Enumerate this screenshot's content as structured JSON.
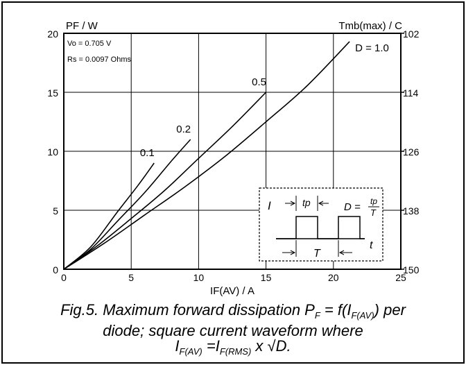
{
  "chart_data": {
    "type": "line",
    "ylabel_left": "PF / W",
    "ylabel_right": "Tmb(max) / C",
    "xlabel": "IF(AV) / A",
    "xlim": [
      0,
      25
    ],
    "ylim": [
      0,
      20
    ],
    "x_ticks": [
      "0",
      "5",
      "10",
      "15",
      "20",
      "25"
    ],
    "y_ticks": [
      "0",
      "5",
      "10",
      "15",
      "20"
    ],
    "right_ticks": [
      "150",
      "138",
      "126",
      "114",
      "102"
    ],
    "grid": true,
    "parameters": [
      "Vo = 0.705 V",
      "Rs = 0.0097 Ohms"
    ],
    "series": [
      {
        "name": "0.1",
        "x": [
          0,
          2,
          4,
          5.5,
          6.7
        ],
        "y": [
          0,
          1.9,
          4.9,
          7.1,
          9.0
        ]
      },
      {
        "name": "0.2",
        "x": [
          0,
          2,
          4,
          6,
          8,
          9.4
        ],
        "y": [
          0,
          1.7,
          4.1,
          6.5,
          9.2,
          11.0
        ]
      },
      {
        "name": "0.5",
        "x": [
          0,
          2.5,
          5,
          7.5,
          10,
          12.5,
          15
        ],
        "y": [
          0,
          2.0,
          4.3,
          6.7,
          9.4,
          12.1,
          15.0
        ]
      },
      {
        "name": "D = 1.0",
        "x": [
          0,
          3,
          6,
          9,
          12,
          15,
          18,
          21.2
        ],
        "y": [
          0,
          2.2,
          4.6,
          7.0,
          9.6,
          12.5,
          15.5,
          19.3
        ]
      }
    ],
    "inset": {
      "i_label": "I",
      "tp_label": "tp",
      "t_label": "t",
      "period_label": "T",
      "d_formula_left": "D =",
      "d_formula_num": "tp",
      "d_formula_den": "T"
    }
  },
  "caption": {
    "line1_a": "Fig.5.  Maximum forward dissipation P",
    "line1_sub1": "F",
    "line1_b": " = f(I",
    "line1_sub2": "F(AV)",
    "line1_c": ") per",
    "line2": "diode; square current waveform where",
    "line3_a": "I",
    "line3_sub1": "F(AV)",
    "line3_b": " =I",
    "line3_sub2": "F(RMS)",
    "line3_c": " x √D."
  }
}
